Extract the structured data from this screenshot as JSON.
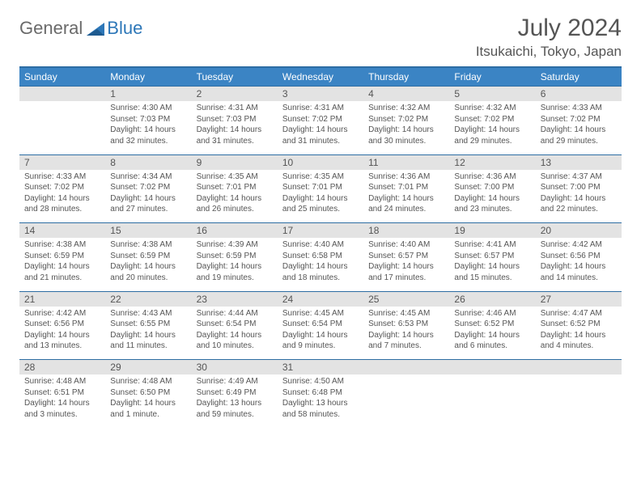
{
  "logo": {
    "text1": "General",
    "text2": "Blue"
  },
  "title": "July 2024",
  "location": "Itsukaichi, Tokyo, Japan",
  "colors": {
    "header_bg": "#3b84c4",
    "header_border": "#2d6da3",
    "daynum_bg": "#e3e3e3",
    "text": "#555555",
    "logo_gray": "#6a6a6a",
    "logo_blue": "#2d77b8"
  },
  "weekdays": [
    "Sunday",
    "Monday",
    "Tuesday",
    "Wednesday",
    "Thursday",
    "Friday",
    "Saturday"
  ],
  "weeks": [
    {
      "nums": [
        "",
        "1",
        "2",
        "3",
        "4",
        "5",
        "6"
      ],
      "cells": [
        {},
        {
          "sunrise": "Sunrise: 4:30 AM",
          "sunset": "Sunset: 7:03 PM",
          "daylight": "Daylight: 14 hours and 32 minutes."
        },
        {
          "sunrise": "Sunrise: 4:31 AM",
          "sunset": "Sunset: 7:03 PM",
          "daylight": "Daylight: 14 hours and 31 minutes."
        },
        {
          "sunrise": "Sunrise: 4:31 AM",
          "sunset": "Sunset: 7:02 PM",
          "daylight": "Daylight: 14 hours and 31 minutes."
        },
        {
          "sunrise": "Sunrise: 4:32 AM",
          "sunset": "Sunset: 7:02 PM",
          "daylight": "Daylight: 14 hours and 30 minutes."
        },
        {
          "sunrise": "Sunrise: 4:32 AM",
          "sunset": "Sunset: 7:02 PM",
          "daylight": "Daylight: 14 hours and 29 minutes."
        },
        {
          "sunrise": "Sunrise: 4:33 AM",
          "sunset": "Sunset: 7:02 PM",
          "daylight": "Daylight: 14 hours and 29 minutes."
        }
      ]
    },
    {
      "nums": [
        "7",
        "8",
        "9",
        "10",
        "11",
        "12",
        "13"
      ],
      "cells": [
        {
          "sunrise": "Sunrise: 4:33 AM",
          "sunset": "Sunset: 7:02 PM",
          "daylight": "Daylight: 14 hours and 28 minutes."
        },
        {
          "sunrise": "Sunrise: 4:34 AM",
          "sunset": "Sunset: 7:02 PM",
          "daylight": "Daylight: 14 hours and 27 minutes."
        },
        {
          "sunrise": "Sunrise: 4:35 AM",
          "sunset": "Sunset: 7:01 PM",
          "daylight": "Daylight: 14 hours and 26 minutes."
        },
        {
          "sunrise": "Sunrise: 4:35 AM",
          "sunset": "Sunset: 7:01 PM",
          "daylight": "Daylight: 14 hours and 25 minutes."
        },
        {
          "sunrise": "Sunrise: 4:36 AM",
          "sunset": "Sunset: 7:01 PM",
          "daylight": "Daylight: 14 hours and 24 minutes."
        },
        {
          "sunrise": "Sunrise: 4:36 AM",
          "sunset": "Sunset: 7:00 PM",
          "daylight": "Daylight: 14 hours and 23 minutes."
        },
        {
          "sunrise": "Sunrise: 4:37 AM",
          "sunset": "Sunset: 7:00 PM",
          "daylight": "Daylight: 14 hours and 22 minutes."
        }
      ]
    },
    {
      "nums": [
        "14",
        "15",
        "16",
        "17",
        "18",
        "19",
        "20"
      ],
      "cells": [
        {
          "sunrise": "Sunrise: 4:38 AM",
          "sunset": "Sunset: 6:59 PM",
          "daylight": "Daylight: 14 hours and 21 minutes."
        },
        {
          "sunrise": "Sunrise: 4:38 AM",
          "sunset": "Sunset: 6:59 PM",
          "daylight": "Daylight: 14 hours and 20 minutes."
        },
        {
          "sunrise": "Sunrise: 4:39 AM",
          "sunset": "Sunset: 6:59 PM",
          "daylight": "Daylight: 14 hours and 19 minutes."
        },
        {
          "sunrise": "Sunrise: 4:40 AM",
          "sunset": "Sunset: 6:58 PM",
          "daylight": "Daylight: 14 hours and 18 minutes."
        },
        {
          "sunrise": "Sunrise: 4:40 AM",
          "sunset": "Sunset: 6:57 PM",
          "daylight": "Daylight: 14 hours and 17 minutes."
        },
        {
          "sunrise": "Sunrise: 4:41 AM",
          "sunset": "Sunset: 6:57 PM",
          "daylight": "Daylight: 14 hours and 15 minutes."
        },
        {
          "sunrise": "Sunrise: 4:42 AM",
          "sunset": "Sunset: 6:56 PM",
          "daylight": "Daylight: 14 hours and 14 minutes."
        }
      ]
    },
    {
      "nums": [
        "21",
        "22",
        "23",
        "24",
        "25",
        "26",
        "27"
      ],
      "cells": [
        {
          "sunrise": "Sunrise: 4:42 AM",
          "sunset": "Sunset: 6:56 PM",
          "daylight": "Daylight: 14 hours and 13 minutes."
        },
        {
          "sunrise": "Sunrise: 4:43 AM",
          "sunset": "Sunset: 6:55 PM",
          "daylight": "Daylight: 14 hours and 11 minutes."
        },
        {
          "sunrise": "Sunrise: 4:44 AM",
          "sunset": "Sunset: 6:54 PM",
          "daylight": "Daylight: 14 hours and 10 minutes."
        },
        {
          "sunrise": "Sunrise: 4:45 AM",
          "sunset": "Sunset: 6:54 PM",
          "daylight": "Daylight: 14 hours and 9 minutes."
        },
        {
          "sunrise": "Sunrise: 4:45 AM",
          "sunset": "Sunset: 6:53 PM",
          "daylight": "Daylight: 14 hours and 7 minutes."
        },
        {
          "sunrise": "Sunrise: 4:46 AM",
          "sunset": "Sunset: 6:52 PM",
          "daylight": "Daylight: 14 hours and 6 minutes."
        },
        {
          "sunrise": "Sunrise: 4:47 AM",
          "sunset": "Sunset: 6:52 PM",
          "daylight": "Daylight: 14 hours and 4 minutes."
        }
      ]
    },
    {
      "nums": [
        "28",
        "29",
        "30",
        "31",
        "",
        "",
        ""
      ],
      "cells": [
        {
          "sunrise": "Sunrise: 4:48 AM",
          "sunset": "Sunset: 6:51 PM",
          "daylight": "Daylight: 14 hours and 3 minutes."
        },
        {
          "sunrise": "Sunrise: 4:48 AM",
          "sunset": "Sunset: 6:50 PM",
          "daylight": "Daylight: 14 hours and 1 minute."
        },
        {
          "sunrise": "Sunrise: 4:49 AM",
          "sunset": "Sunset: 6:49 PM",
          "daylight": "Daylight: 13 hours and 59 minutes."
        },
        {
          "sunrise": "Sunrise: 4:50 AM",
          "sunset": "Sunset: 6:48 PM",
          "daylight": "Daylight: 13 hours and 58 minutes."
        },
        {},
        {},
        {}
      ]
    }
  ]
}
